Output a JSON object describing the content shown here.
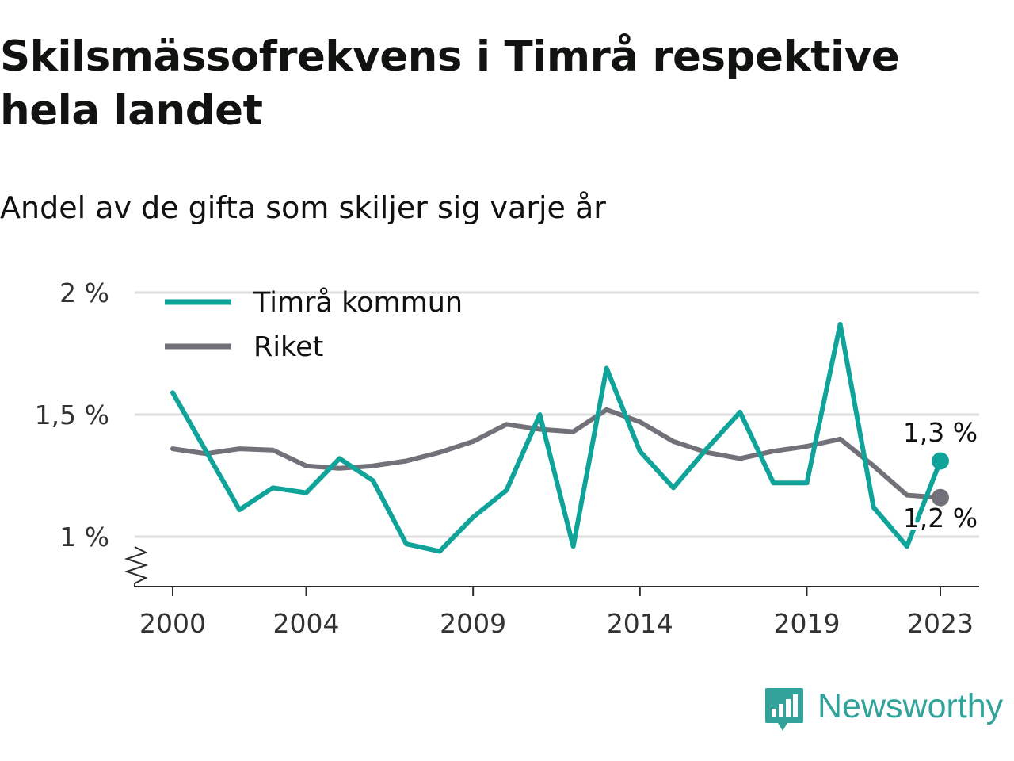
{
  "title": "Skilsmässofrekvens i Timrå respektive hela landet",
  "subtitle": "Andel av de gifta som skiljer sig varje år",
  "brand": {
    "name": "Newsworthy",
    "icon": "newsworthy-logo-icon"
  },
  "colors": {
    "timra": "#0fa39a",
    "riket": "#727078",
    "grid": "#dedede",
    "axis": "#2b2b2b",
    "brand": "#31a39a"
  },
  "chart_data": {
    "type": "line",
    "title": "Skilsmässofrekvens i Timrå respektive hela landet",
    "subtitle": "Andel av de gifta som skiljer sig varje år",
    "x": [
      2000,
      2001,
      2002,
      2003,
      2004,
      2005,
      2006,
      2007,
      2008,
      2009,
      2010,
      2011,
      2012,
      2013,
      2014,
      2015,
      2016,
      2017,
      2018,
      2019,
      2020,
      2021,
      2022,
      2023
    ],
    "x_ticks": [
      "2000",
      "2004",
      "2009",
      "2014",
      "2019",
      "2023"
    ],
    "x_tick_values": [
      2000,
      2004,
      2009,
      2014,
      2019,
      2023
    ],
    "y_ticks": [
      1.0,
      1.5,
      2.0
    ],
    "y_tick_labels": [
      "1 %",
      "1,5 %",
      "2 %"
    ],
    "ylim": [
      0.8,
      2.0
    ],
    "y_axis_break": true,
    "grid": true,
    "legend_position": "top-left",
    "series": [
      {
        "name": "Timrå kommun",
        "color": "#0fa39a",
        "values": [
          1.59,
          1.35,
          1.11,
          1.2,
          1.18,
          1.32,
          1.23,
          0.97,
          0.94,
          1.08,
          1.19,
          1.5,
          0.96,
          1.69,
          1.35,
          1.2,
          1.36,
          1.51,
          1.22,
          1.22,
          1.87,
          1.12,
          0.96,
          1.31
        ],
        "end_label": "1,3 %"
      },
      {
        "name": "Riket",
        "color": "#727078",
        "values": [
          1.36,
          1.34,
          1.36,
          1.355,
          1.29,
          1.28,
          1.29,
          1.31,
          1.345,
          1.39,
          1.46,
          1.44,
          1.43,
          1.52,
          1.47,
          1.39,
          1.345,
          1.32,
          1.35,
          1.37,
          1.4,
          1.29,
          1.17,
          1.16
        ],
        "end_label": "1,2 %"
      }
    ]
  }
}
